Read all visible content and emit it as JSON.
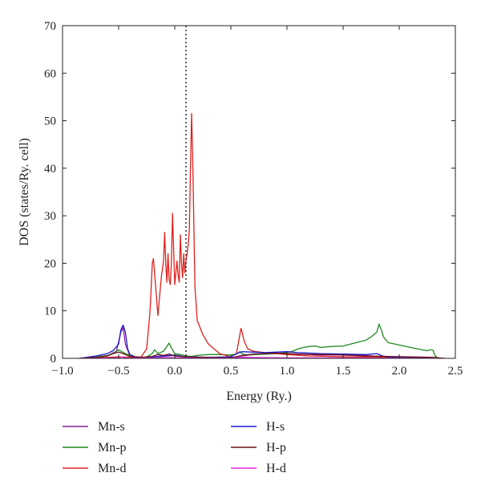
{
  "chart_data": {
    "type": "line",
    "title": "",
    "xlabel": "Energy (Ry.)",
    "ylabel": "DOS (states/Ry. cell)",
    "xlim": [
      -1.0,
      2.5
    ],
    "ylim": [
      0,
      70
    ],
    "xticks": [
      "−1.0",
      "−0.5",
      "0.0",
      "0.5",
      "1.0",
      "1.5",
      "2.0",
      "2.5"
    ],
    "xtick_values": [
      -1.0,
      -0.5,
      0.0,
      0.5,
      1.0,
      1.5,
      2.0,
      2.5
    ],
    "yticks": [
      "0",
      "10",
      "20",
      "30",
      "40",
      "50",
      "60",
      "70"
    ],
    "ytick_values": [
      0,
      10,
      20,
      30,
      40,
      50,
      60,
      70
    ],
    "fermi_level": 0.1,
    "grid": false,
    "legend_position": "below plot, two columns",
    "series": [
      {
        "name": "Mn-s",
        "color": "#8b1a9e",
        "x": [
          -0.85,
          -0.7,
          -0.6,
          -0.52,
          -0.48,
          -0.46,
          -0.44,
          -0.4,
          -0.3,
          -0.2,
          -0.1,
          0.0,
          0.1,
          0.3,
          0.5,
          0.6,
          0.7,
          0.9,
          1.1,
          1.3,
          1.5,
          1.7,
          1.85,
          2.0,
          2.2,
          2.4
        ],
        "y": [
          0,
          0.2,
          0.5,
          1.5,
          5.5,
          6.5,
          3.0,
          0.5,
          0.1,
          0.3,
          0.4,
          0.6,
          0.3,
          0.2,
          0.1,
          0.5,
          0.8,
          1.0,
          0.9,
          0.7,
          0.8,
          0.6,
          0.3,
          0.2,
          0.1,
          0
        ]
      },
      {
        "name": "Mn-p",
        "color": "#1f8a1f",
        "x": [
          -0.85,
          -0.7,
          -0.6,
          -0.55,
          -0.5,
          -0.47,
          -0.44,
          -0.4,
          -0.35,
          -0.3,
          -0.25,
          -0.2,
          -0.18,
          -0.15,
          -0.1,
          -0.05,
          -0.03,
          0.0,
          0.05,
          0.1,
          0.15,
          0.2,
          0.3,
          0.4,
          0.5,
          0.55,
          0.58,
          0.6,
          0.62,
          0.65,
          0.7,
          0.8,
          0.9,
          1.0,
          1.05,
          1.1,
          1.15,
          1.2,
          1.25,
          1.3,
          1.4,
          1.5,
          1.6,
          1.7,
          1.75,
          1.8,
          1.82,
          1.84,
          1.86,
          1.9,
          2.0,
          2.1,
          2.2,
          2.25,
          2.28,
          2.3,
          2.32,
          2.35
        ],
        "y": [
          0,
          0.3,
          0.6,
          1.0,
          1.8,
          1.4,
          1.0,
          0.6,
          0.3,
          0.1,
          0.3,
          1.0,
          1.8,
          1.0,
          1.5,
          3.2,
          2.2,
          1.0,
          0.8,
          0.5,
          0.4,
          0.6,
          0.8,
          0.8,
          0.7,
          0.9,
          1.4,
          1.0,
          0.8,
          0.7,
          0.8,
          0.9,
          1.0,
          1.2,
          1.5,
          2.0,
          2.3,
          2.5,
          2.6,
          2.3,
          2.5,
          2.6,
          3.2,
          3.8,
          4.5,
          5.5,
          7.2,
          6.0,
          4.5,
          3.3,
          2.8,
          2.3,
          1.8,
          1.6,
          1.8,
          1.7,
          0.5,
          0
        ]
      },
      {
        "name": "Mn-d",
        "color": "#e0211d",
        "x": [
          -0.85,
          -0.7,
          -0.5,
          -0.4,
          -0.3,
          -0.25,
          -0.22,
          -0.2,
          -0.19,
          -0.17,
          -0.15,
          -0.12,
          -0.1,
          -0.09,
          -0.08,
          -0.07,
          -0.06,
          -0.05,
          -0.04,
          -0.03,
          -0.02,
          -0.01,
          0.0,
          0.02,
          0.03,
          0.04,
          0.05,
          0.06,
          0.07,
          0.08,
          0.09,
          0.1,
          0.11,
          0.12,
          0.13,
          0.14,
          0.15,
          0.16,
          0.18,
          0.2,
          0.25,
          0.3,
          0.4,
          0.5,
          0.55,
          0.58,
          0.59,
          0.6,
          0.62,
          0.65,
          0.7,
          0.8,
          1.0,
          1.2,
          1.4,
          1.6,
          1.8,
          2.0,
          2.2,
          2.4
        ],
        "y": [
          0,
          0.1,
          0.3,
          0.2,
          0.3,
          2.0,
          10.0,
          20.0,
          21.0,
          15.0,
          9.0,
          17.0,
          20.5,
          26.5,
          20.0,
          16.0,
          22.0,
          16.5,
          15.5,
          20.0,
          30.5,
          23.0,
          15.5,
          20.5,
          17.5,
          16.0,
          26.0,
          20.0,
          17.0,
          22.0,
          18.0,
          20.5,
          22.0,
          24.0,
          27.0,
          40.0,
          51.5,
          42.0,
          15.0,
          8.0,
          5.0,
          3.0,
          1.0,
          0.3,
          1.0,
          5.0,
          6.3,
          5.5,
          3.5,
          2.0,
          1.5,
          1.2,
          0.8,
          0.5,
          0.4,
          0.3,
          0.3,
          0.2,
          0.1,
          0
        ]
      },
      {
        "name": "H-s",
        "color": "#1a1acf",
        "x": [
          -0.85,
          -0.7,
          -0.6,
          -0.55,
          -0.5,
          -0.48,
          -0.46,
          -0.44,
          -0.42,
          -0.4,
          -0.35,
          -0.3,
          -0.2,
          -0.1,
          0.0,
          0.1,
          0.3,
          0.5,
          0.55,
          0.6,
          0.7,
          0.8,
          0.9,
          1.0,
          1.1,
          1.3,
          1.5,
          1.7,
          1.8,
          1.85,
          1.9,
          2.0,
          2.2,
          2.4
        ],
        "y": [
          0,
          0.5,
          1.0,
          1.6,
          3.0,
          6.0,
          7.0,
          5.5,
          2.0,
          0.8,
          0.3,
          0.1,
          0.3,
          0.5,
          0.7,
          0.3,
          0.2,
          0.3,
          1.0,
          1.4,
          1.3,
          1.2,
          1.3,
          1.4,
          1.2,
          1.0,
          0.9,
          0.8,
          1.0,
          0.5,
          0.3,
          0.2,
          0.1,
          0
        ]
      },
      {
        "name": "H-p",
        "color": "#6b1016",
        "x": [
          -0.85,
          -0.7,
          -0.6,
          -0.55,
          -0.5,
          -0.47,
          -0.44,
          -0.4,
          -0.3,
          -0.2,
          -0.15,
          -0.1,
          -0.05,
          0.0,
          0.1,
          0.3,
          0.5,
          0.6,
          0.7,
          0.9,
          1.1,
          1.3,
          1.5,
          1.7,
          1.9,
          2.1,
          2.3,
          2.4
        ],
        "y": [
          0,
          0.2,
          0.5,
          1.0,
          1.3,
          1.1,
          0.8,
          0.4,
          0.2,
          0.4,
          0.8,
          0.6,
          0.9,
          0.5,
          0.3,
          0.2,
          0.1,
          0.6,
          0.9,
          1.1,
          0.9,
          0.8,
          0.7,
          0.5,
          0.4,
          0.3,
          0.2,
          0
        ]
      },
      {
        "name": "H-d",
        "color": "#e826e3",
        "x": [
          -0.85,
          -0.6,
          -0.5,
          -0.47,
          -0.44,
          -0.4,
          -0.2,
          0.0,
          0.2,
          0.5,
          0.6,
          0.8,
          1.0,
          1.5,
          2.0,
          2.4
        ],
        "y": [
          0,
          0.05,
          0.1,
          0.3,
          0.1,
          0.05,
          0.1,
          0.15,
          0.05,
          0.05,
          0.2,
          0.15,
          0.1,
          0.1,
          0.05,
          0
        ]
      }
    ]
  }
}
